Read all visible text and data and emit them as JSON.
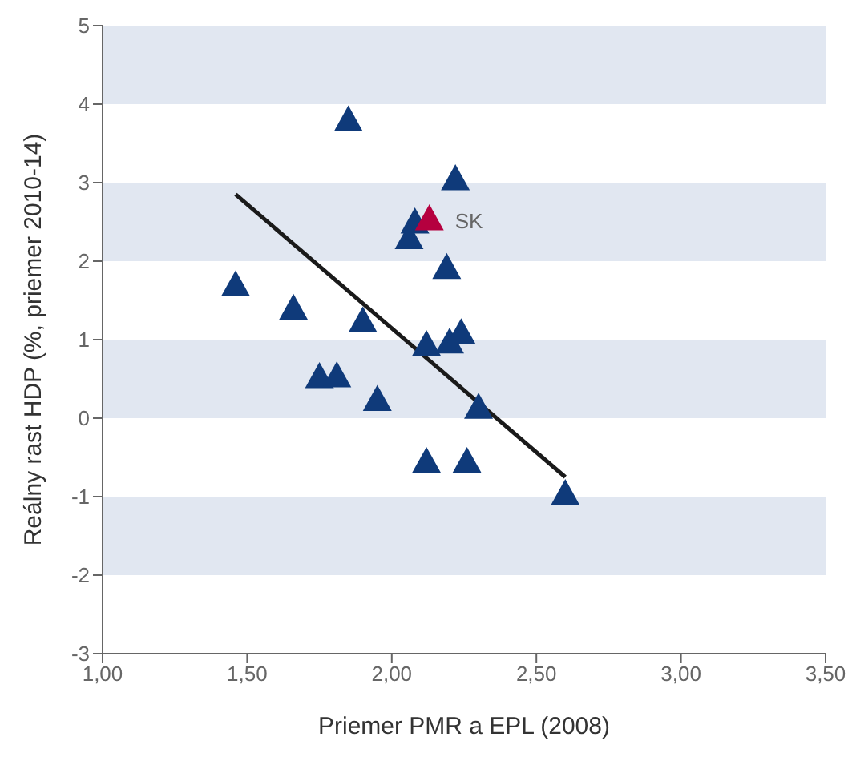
{
  "chart_data": {
    "type": "scatter",
    "xlabel": "Priemer PMR a EPL (2008)",
    "ylabel": "Reálny rast HDP (%, priemer 2010-14)",
    "xlim": [
      1,
      3.5
    ],
    "xticks": [
      {
        "value": 1,
        "label": "1,00"
      },
      {
        "value": 1.5,
        "label": "1,50"
      },
      {
        "value": 2,
        "label": "2,00"
      },
      {
        "value": 2.5,
        "label": "2,50"
      },
      {
        "value": 3,
        "label": "3,00"
      },
      {
        "value": 3.5,
        "label": "3,50"
      }
    ],
    "ylim": [
      -3,
      5
    ],
    "yticks": [
      -3,
      -2,
      -1,
      0,
      1,
      2,
      3,
      4,
      5
    ],
    "grid": false,
    "marker": "triangle",
    "bands": [
      {
        "axis": "y",
        "from": 4,
        "to": 5,
        "color": "#e1e7f1"
      },
      {
        "axis": "y",
        "from": 2,
        "to": 3,
        "color": "#e1e7f1"
      },
      {
        "axis": "y",
        "from": 0,
        "to": 1,
        "color": "#e1e7f1"
      },
      {
        "axis": "y",
        "from": -2,
        "to": -1,
        "color": "#e1e7f1"
      }
    ],
    "series": [
      {
        "type": "line",
        "color": "#1a1a1a",
        "marker": "none",
        "x": [
          1.46,
          2.6
        ],
        "values": [
          2.85,
          -0.75
        ]
      },
      {
        "color": "#0f3a7a",
        "x": [
          1.46,
          1.66,
          1.85,
          1.9,
          1.75,
          1.81,
          1.95,
          2.08,
          2.06,
          2.22,
          2.19,
          2.12,
          2.2,
          2.24,
          2.3,
          2.12,
          2.26,
          2.6
        ],
        "values": [
          1.7,
          1.4,
          3.8,
          1.24,
          0.53,
          0.54,
          0.24,
          2.5,
          2.3,
          3.05,
          1.92,
          0.94,
          0.97,
          1.09,
          0.14,
          -0.55,
          -0.55,
          -0.96
        ]
      },
      {
        "name": "SK",
        "color": "#b5003f",
        "x": [
          2.13
        ],
        "values": [
          2.54
        ]
      }
    ]
  }
}
